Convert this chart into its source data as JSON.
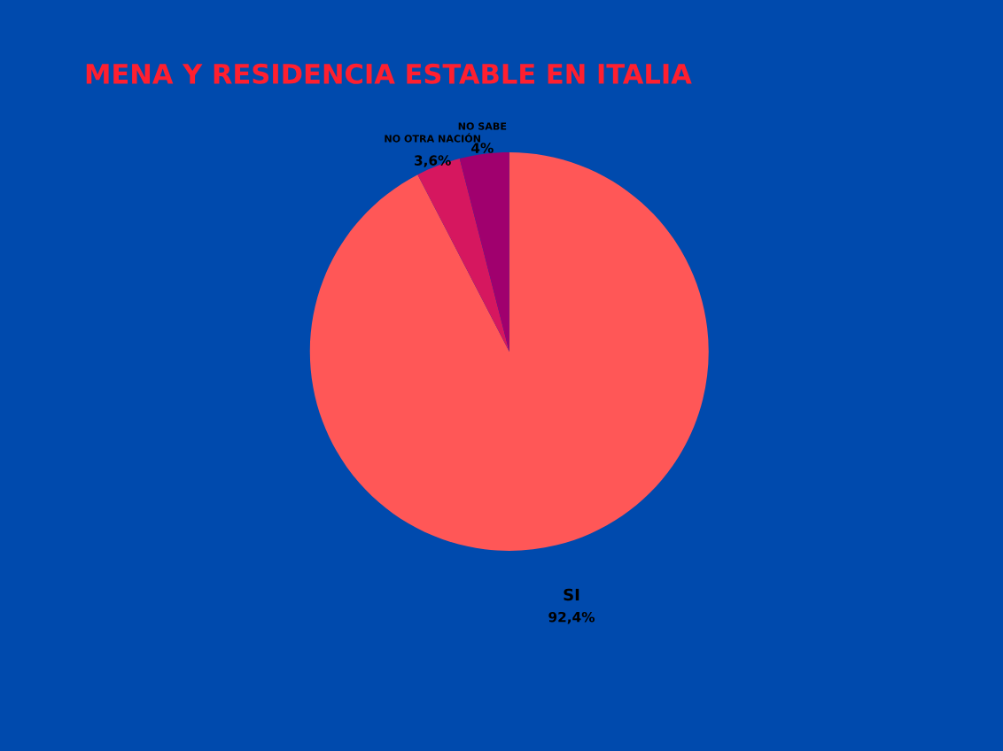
{
  "chart_data": {
    "type": "pie",
    "title": "MENA Y RESIDENCIA ESTABLE EN ITALIA",
    "categories": [
      "SI",
      "NO OTRA NACIÓN",
      "NO SABE"
    ],
    "values": [
      92.4,
      3.6,
      4
    ],
    "colors": [
      "#ff5757",
      "#d6175f",
      "#a0006e"
    ],
    "value_labels": [
      "92,4%",
      "3,6%",
      "4%"
    ],
    "legend": false
  }
}
